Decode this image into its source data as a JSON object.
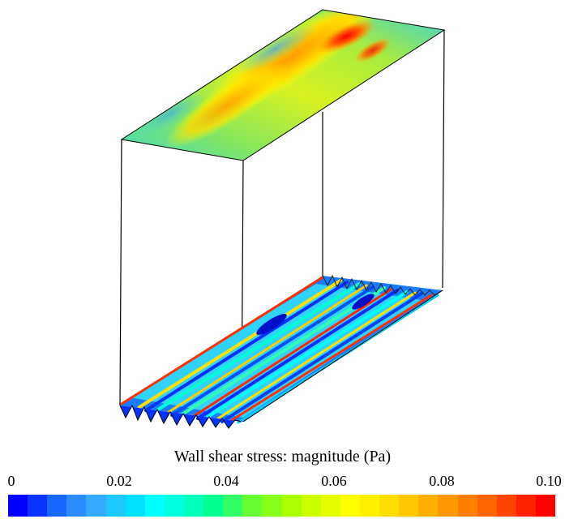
{
  "legend": {
    "title": "Wall shear stress: magnitude (Pa)",
    "ticks": [
      "0",
      "0.02",
      "0.04",
      "0.06",
      "0.08",
      "0.10"
    ],
    "min": 0,
    "max": 0.1,
    "colors": [
      "#0000ff",
      "#0b33ff",
      "#1a66ff",
      "#2b8cff",
      "#33aaff",
      "#1ec8ff",
      "#00e0ff",
      "#00ffff",
      "#00ffe0",
      "#00ffb8",
      "#00ff90",
      "#33ff66",
      "#66ff33",
      "#88ff1a",
      "#aaff00",
      "#ccff00",
      "#e6ff00",
      "#ffff00",
      "#fff000",
      "#ffdd00",
      "#ffc800",
      "#ffb000",
      "#ff9900",
      "#ff8000",
      "#ff6600",
      "#ff4400",
      "#ff2200",
      "#ff0000"
    ]
  }
}
